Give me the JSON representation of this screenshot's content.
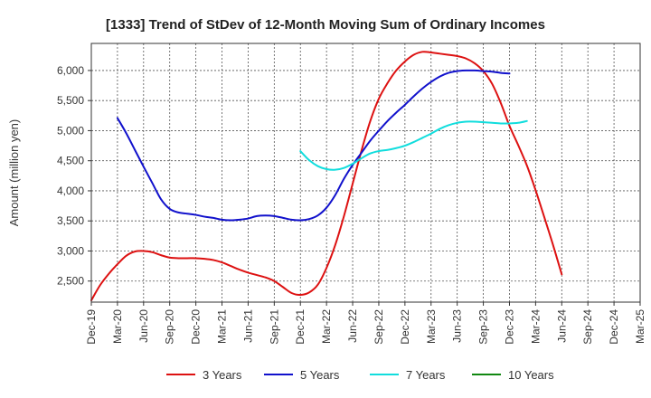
{
  "chart_data": {
    "type": "line",
    "title": "[1333]  Trend of StDev of 12-Month Moving Sum of Ordinary Incomes",
    "ylabel": "Amount (million yen)",
    "xlabel": "",
    "x_ticks": [
      "Dec-19",
      "Mar-20",
      "Jun-20",
      "Sep-20",
      "Dec-20",
      "Mar-21",
      "Jun-21",
      "Sep-21",
      "Dec-21",
      "Mar-22",
      "Jun-22",
      "Sep-22",
      "Dec-22",
      "Mar-23",
      "Jun-23",
      "Sep-23",
      "Dec-23",
      "Mar-24",
      "Jun-24",
      "Sep-24",
      "Dec-24",
      "Mar-25"
    ],
    "y_ticks": [
      2500,
      3000,
      3500,
      4000,
      4500,
      5000,
      5500,
      6000
    ],
    "ylim": [
      2150,
      6450
    ],
    "grid": true,
    "legend_position": "bottom",
    "series": [
      {
        "name": "3 Years",
        "color": "#dd1111",
        "points": [
          [
            "Dec-19",
            2180
          ],
          [
            "Jan-20",
            2430
          ],
          [
            "Feb-20",
            2620
          ],
          [
            "Mar-20",
            2780
          ],
          [
            "Apr-20",
            2920
          ],
          [
            "May-20",
            2990
          ],
          [
            "Jun-20",
            3000
          ],
          [
            "Jul-20",
            2980
          ],
          [
            "Aug-20",
            2930
          ],
          [
            "Sep-20",
            2890
          ],
          [
            "Oct-20",
            2880
          ],
          [
            "Nov-20",
            2880
          ],
          [
            "Dec-20",
            2880
          ],
          [
            "Jan-21",
            2870
          ],
          [
            "Feb-21",
            2850
          ],
          [
            "Mar-21",
            2810
          ],
          [
            "Apr-21",
            2750
          ],
          [
            "May-21",
            2690
          ],
          [
            "Jun-21",
            2640
          ],
          [
            "Jul-21",
            2600
          ],
          [
            "Aug-21",
            2560
          ],
          [
            "Sep-21",
            2500
          ],
          [
            "Oct-21",
            2400
          ],
          [
            "Nov-21",
            2300
          ],
          [
            "Dec-21",
            2270
          ],
          [
            "Jan-22",
            2310
          ],
          [
            "Feb-22",
            2440
          ],
          [
            "Mar-22",
            2720
          ],
          [
            "Apr-22",
            3100
          ],
          [
            "May-22",
            3580
          ],
          [
            "Jun-22",
            4120
          ],
          [
            "Jul-22",
            4660
          ],
          [
            "Aug-22",
            5150
          ],
          [
            "Sep-22",
            5530
          ],
          [
            "Oct-22",
            5790
          ],
          [
            "Nov-22",
            6000
          ],
          [
            "Dec-22",
            6150
          ],
          [
            "Jan-23",
            6260
          ],
          [
            "Feb-23",
            6310
          ],
          [
            "Mar-23",
            6300
          ],
          [
            "Apr-23",
            6280
          ],
          [
            "May-23",
            6260
          ],
          [
            "Jun-23",
            6240
          ],
          [
            "Jul-23",
            6200
          ],
          [
            "Aug-23",
            6120
          ],
          [
            "Sep-23",
            5990
          ],
          [
            "Oct-23",
            5780
          ],
          [
            "Nov-23",
            5460
          ],
          [
            "Dec-23",
            5080
          ],
          [
            "Jan-24",
            4760
          ],
          [
            "Feb-24",
            4420
          ],
          [
            "Mar-24",
            4010
          ],
          [
            "Apr-24",
            3560
          ],
          [
            "May-24",
            3100
          ],
          [
            "Jun-24",
            2610
          ]
        ]
      },
      {
        "name": "5 Years",
        "color": "#1111cc",
        "points": [
          [
            "Mar-20",
            5210
          ],
          [
            "Apr-20",
            4960
          ],
          [
            "May-20",
            4680
          ],
          [
            "Jun-20",
            4400
          ],
          [
            "Jul-20",
            4130
          ],
          [
            "Aug-20",
            3860
          ],
          [
            "Sep-20",
            3700
          ],
          [
            "Oct-20",
            3640
          ],
          [
            "Nov-20",
            3620
          ],
          [
            "Dec-20",
            3600
          ],
          [
            "Jan-21",
            3570
          ],
          [
            "Feb-21",
            3550
          ],
          [
            "Mar-21",
            3520
          ],
          [
            "Apr-21",
            3510
          ],
          [
            "May-21",
            3520
          ],
          [
            "Jun-21",
            3540
          ],
          [
            "Jul-21",
            3580
          ],
          [
            "Aug-21",
            3590
          ],
          [
            "Sep-21",
            3580
          ],
          [
            "Oct-21",
            3550
          ],
          [
            "Nov-21",
            3520
          ],
          [
            "Dec-21",
            3510
          ],
          [
            "Jan-22",
            3530
          ],
          [
            "Feb-22",
            3590
          ],
          [
            "Mar-22",
            3720
          ],
          [
            "Apr-22",
            3930
          ],
          [
            "May-22",
            4200
          ],
          [
            "Jun-22",
            4430
          ],
          [
            "Jul-22",
            4630
          ],
          [
            "Aug-22",
            4830
          ],
          [
            "Sep-22",
            5000
          ],
          [
            "Oct-22",
            5160
          ],
          [
            "Nov-22",
            5300
          ],
          [
            "Dec-22",
            5430
          ],
          [
            "Jan-23",
            5570
          ],
          [
            "Feb-23",
            5700
          ],
          [
            "Mar-23",
            5810
          ],
          [
            "Apr-23",
            5900
          ],
          [
            "May-23",
            5960
          ],
          [
            "Jun-23",
            5990
          ],
          [
            "Jul-23",
            6000
          ],
          [
            "Aug-23",
            6000
          ],
          [
            "Sep-23",
            5990
          ],
          [
            "Oct-23",
            5980
          ],
          [
            "Nov-23",
            5960
          ],
          [
            "Dec-23",
            5950
          ]
        ]
      },
      {
        "name": "7 Years",
        "color": "#11dddd",
        "points": [
          [
            "Dec-21",
            4660
          ],
          [
            "Jan-22",
            4510
          ],
          [
            "Feb-22",
            4410
          ],
          [
            "Mar-22",
            4360
          ],
          [
            "Apr-22",
            4350
          ],
          [
            "May-22",
            4380
          ],
          [
            "Jun-22",
            4450
          ],
          [
            "Jul-22",
            4540
          ],
          [
            "Aug-22",
            4620
          ],
          [
            "Sep-22",
            4660
          ],
          [
            "Oct-22",
            4680
          ],
          [
            "Nov-22",
            4710
          ],
          [
            "Dec-22",
            4750
          ],
          [
            "Jan-23",
            4810
          ],
          [
            "Feb-23",
            4880
          ],
          [
            "Mar-23",
            4950
          ],
          [
            "Apr-23",
            5030
          ],
          [
            "May-23",
            5090
          ],
          [
            "Jun-23",
            5130
          ],
          [
            "Jul-23",
            5150
          ],
          [
            "Aug-23",
            5150
          ],
          [
            "Sep-23",
            5140
          ],
          [
            "Oct-23",
            5130
          ],
          [
            "Nov-23",
            5120
          ],
          [
            "Dec-23",
            5120
          ],
          [
            "Jan-24",
            5130
          ],
          [
            "Feb-24",
            5160
          ]
        ]
      },
      {
        "name": "10 Years",
        "color": "#118811",
        "points": []
      }
    ]
  }
}
